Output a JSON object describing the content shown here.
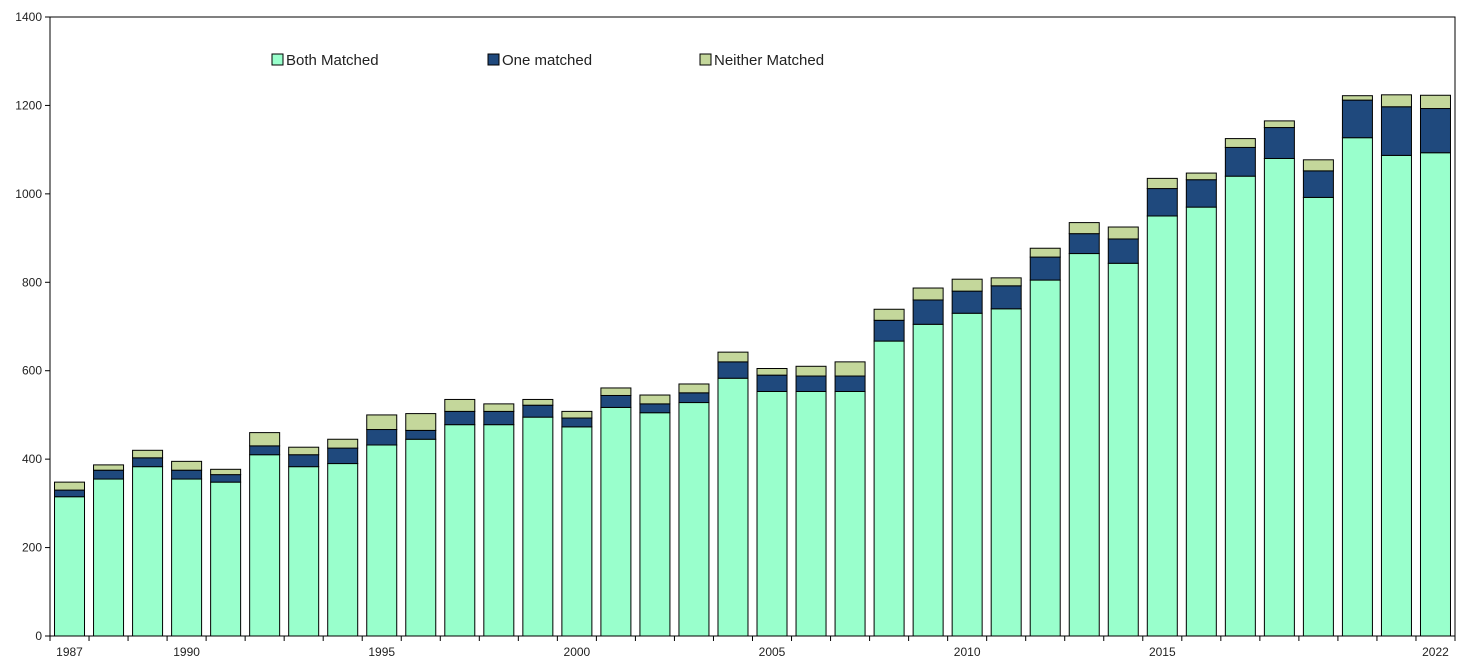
{
  "chart_data": {
    "type": "bar",
    "stacked": true,
    "title": "",
    "xlabel": "",
    "ylabel": "",
    "ylim": [
      0,
      1400
    ],
    "y_ticks": [
      0,
      200,
      400,
      600,
      800,
      1000,
      1200,
      1400
    ],
    "x_tick_labels": [
      "1987",
      "1990",
      "1995",
      "2000",
      "2005",
      "2010",
      "2015",
      "2022"
    ],
    "legend_position": "top",
    "grid": false,
    "categories": [
      "1987",
      "1988",
      "1989",
      "1990",
      "1991",
      "1992",
      "1993",
      "1994",
      "1995",
      "1996",
      "1997",
      "1998",
      "1999",
      "2000",
      "2001",
      "2002",
      "2003",
      "2004",
      "2005",
      "2006",
      "2007",
      "2008",
      "2009",
      "2010",
      "2011",
      "2012",
      "2013",
      "2014",
      "2015",
      "2016",
      "2017",
      "2018",
      "2019",
      "2020",
      "2021",
      "2022"
    ],
    "series": [
      {
        "name": "Both Matched",
        "color": "#99ffcc",
        "values": [
          315,
          355,
          383,
          355,
          348,
          410,
          383,
          390,
          432,
          445,
          478,
          478,
          495,
          473,
          517,
          505,
          528,
          583,
          553,
          553,
          553,
          667,
          705,
          730,
          740,
          805,
          865,
          843,
          950,
          970,
          1040,
          1080,
          992,
          1127,
          1087,
          1093
        ]
      },
      {
        "name": "One matched",
        "color": "#1f497d",
        "values": [
          15,
          20,
          20,
          20,
          17,
          20,
          27,
          35,
          35,
          20,
          30,
          30,
          27,
          20,
          27,
          20,
          22,
          37,
          37,
          35,
          35,
          47,
          55,
          50,
          52,
          52,
          45,
          55,
          62,
          62,
          65,
          70,
          60,
          85,
          110,
          100
        ]
      },
      {
        "name": "Neither Matched",
        "color": "#c4d79b",
        "values": [
          18,
          12,
          17,
          20,
          12,
          30,
          17,
          20,
          33,
          38,
          27,
          17,
          13,
          15,
          17,
          20,
          20,
          22,
          15,
          22,
          32,
          25,
          27,
          27,
          18,
          20,
          25,
          27,
          23,
          15,
          20,
          15,
          25,
          10,
          27,
          30
        ]
      }
    ]
  }
}
